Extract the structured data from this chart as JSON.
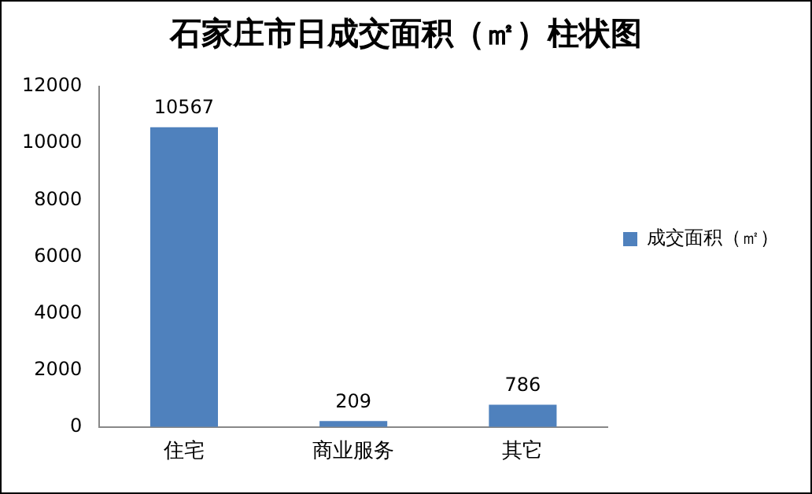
{
  "chart_data": {
    "type": "bar",
    "title": "石家庄市日成交面积（㎡）柱状图",
    "categories": [
      "住宅",
      "商业服务",
      "其它"
    ],
    "series": [
      {
        "name": "成交面积（㎡）",
        "color": "#4f81bd",
        "values": [
          10567,
          209,
          786
        ]
      }
    ],
    "ylim": [
      0,
      12000
    ],
    "yticks": [
      0,
      2000,
      4000,
      6000,
      8000,
      10000,
      12000
    ],
    "grid": false,
    "legend": "right",
    "data_labels": true
  }
}
